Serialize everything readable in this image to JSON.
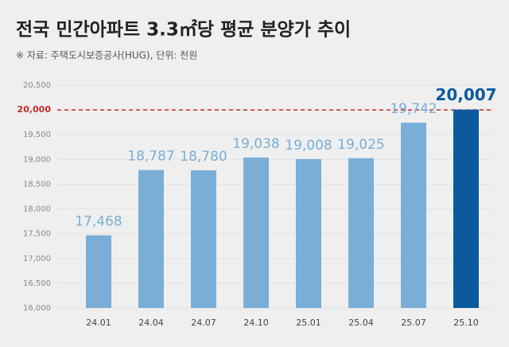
{
  "chart_data": {
    "type": "bar",
    "title": "전국 민간아파트 3.3㎡당 평균 분양가 추이",
    "subtitle": "※ 자료: 주택도시보증공사(HUG), 단위: 천원",
    "categories": [
      "24.01",
      "24.04",
      "24.07",
      "24.10",
      "25.01",
      "25.04",
      "25.07",
      "25.10"
    ],
    "values": [
      17468,
      18787,
      18780,
      19038,
      19008,
      19025,
      19742,
      20007
    ],
    "value_labels": [
      "17,468",
      "18,787",
      "18,780",
      "19,038",
      "19,008",
      "19,025",
      "19,742",
      "20,007"
    ],
    "colors": [
      "#7aaed7",
      "#7aaed7",
      "#7aaed7",
      "#7aaed7",
      "#7aaed7",
      "#7aaed7",
      "#7aaed7",
      "#0b5a9e"
    ],
    "ylim": [
      16000,
      20500
    ],
    "yticks": [
      {
        "value": 16000,
        "label": "16,000"
      },
      {
        "value": 16500,
        "label": "16,500"
      },
      {
        "value": 17000,
        "label": "17,000"
      },
      {
        "value": 17500,
        "label": "17,500"
      },
      {
        "value": 18000,
        "label": "18,000"
      },
      {
        "value": 18500,
        "label": "18,500"
      },
      {
        "value": 19000,
        "label": "19,000"
      },
      {
        "value": 19500,
        "label": "19,500"
      },
      {
        "value": 20000,
        "label": "20,000"
      },
      {
        "value": 20500,
        "label": "20,500"
      }
    ],
    "reference_line": {
      "value": 20000,
      "color": "#c62b2b"
    },
    "grid": true
  }
}
